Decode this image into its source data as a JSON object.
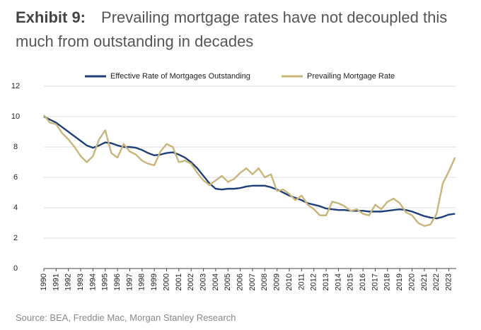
{
  "chart_data": {
    "type": "line",
    "title_label": "Exhibit 9:",
    "title": "Prevailing mortgage rates have not decoupled this much from outstanding in decades",
    "source": "Source: BEA, Freddie Mac, Morgan Stanley Research",
    "x": [
      1990,
      1990.5,
      1991,
      1991.5,
      1992,
      1992.5,
      1993,
      1993.5,
      1994,
      1994.5,
      1995,
      1995.5,
      1996,
      1996.5,
      1997,
      1997.5,
      1998,
      1998.5,
      1999,
      1999.5,
      2000,
      2000.5,
      2001,
      2001.5,
      2002,
      2002.5,
      2003,
      2003.5,
      2004,
      2004.5,
      2005,
      2005.5,
      2006,
      2006.5,
      2007,
      2007.5,
      2008,
      2008.5,
      2009,
      2009.5,
      2010,
      2010.5,
      2011,
      2011.5,
      2012,
      2012.5,
      2013,
      2013.5,
      2014,
      2014.5,
      2015,
      2015.5,
      2016,
      2016.5,
      2017,
      2017.5,
      2018,
      2018.5,
      2019,
      2019.5,
      2020,
      2020.5,
      2021,
      2021.5,
      2022,
      2022.5,
      2023,
      2023.5
    ],
    "series": [
      {
        "name": "Effective Rate of Mortgages Outstanding",
        "color": "#1f3f7a",
        "values": [
          10.0,
          9.8,
          9.6,
          9.3,
          9.0,
          8.7,
          8.4,
          8.1,
          7.95,
          8.1,
          8.3,
          8.25,
          8.1,
          8.0,
          8.0,
          7.95,
          7.8,
          7.6,
          7.45,
          7.5,
          7.6,
          7.65,
          7.5,
          7.3,
          7.0,
          6.6,
          6.1,
          5.6,
          5.25,
          5.2,
          5.25,
          5.25,
          5.3,
          5.4,
          5.45,
          5.45,
          5.45,
          5.35,
          5.2,
          5.0,
          4.8,
          4.65,
          4.5,
          4.3,
          4.2,
          4.1,
          3.95,
          3.9,
          3.85,
          3.85,
          3.8,
          3.8,
          3.8,
          3.75,
          3.75,
          3.75,
          3.8,
          3.85,
          3.9,
          3.85,
          3.75,
          3.6,
          3.45,
          3.35,
          3.3,
          3.4,
          3.55,
          3.6
        ]
      },
      {
        "name": "Prevailing Mortgage Rate",
        "color": "#c8b57a",
        "values": [
          10.1,
          9.6,
          9.5,
          8.9,
          8.5,
          8.0,
          7.4,
          7.0,
          7.4,
          8.5,
          9.1,
          7.6,
          7.3,
          8.2,
          7.7,
          7.5,
          7.1,
          6.9,
          6.8,
          7.7,
          8.2,
          8.0,
          7.0,
          7.1,
          6.9,
          6.3,
          5.8,
          5.5,
          5.8,
          6.1,
          5.7,
          5.9,
          6.3,
          6.6,
          6.2,
          6.6,
          6.0,
          6.2,
          5.1,
          5.2,
          4.9,
          4.5,
          4.8,
          4.2,
          3.9,
          3.5,
          3.5,
          4.4,
          4.3,
          4.1,
          3.8,
          3.9,
          3.6,
          3.5,
          4.2,
          3.9,
          4.4,
          4.6,
          4.3,
          3.7,
          3.5,
          3.0,
          2.8,
          2.9,
          3.6,
          5.6,
          6.4,
          7.3
        ]
      }
    ],
    "xlim": [
      1990,
      2023.6
    ],
    "xticks": [
      1990,
      1991,
      1992,
      1993,
      1994,
      1995,
      1996,
      1997,
      1998,
      1999,
      2000,
      2001,
      2002,
      2003,
      2004,
      2005,
      2006,
      2007,
      2008,
      2009,
      2010,
      2011,
      2012,
      2013,
      2014,
      2015,
      2016,
      2017,
      2018,
      2019,
      2020,
      2021,
      2022,
      2023
    ],
    "ylim": [
      0,
      12
    ],
    "yticks": [
      0,
      2,
      4,
      6,
      8,
      10,
      12
    ],
    "grid": true,
    "legend": "top"
  }
}
